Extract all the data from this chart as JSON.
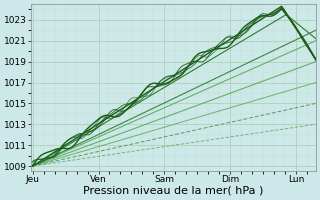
{
  "background_color": "#cce8e8",
  "plot_bg_color": "#cce8e8",
  "grid_color_major": "#aaccaa",
  "grid_color_minor": "#bbddbb",
  "ylim": [
    1008.5,
    1024.5
  ],
  "yticks": [
    1009,
    1011,
    1013,
    1015,
    1017,
    1019,
    1021,
    1023
  ],
  "xlabel": "Pression niveau de la mer( hPa )",
  "xlabel_fontsize": 8,
  "tick_fontsize": 6.5,
  "day_labels": [
    "Jeu",
    "Ven",
    "Sam",
    "Dim",
    "Lun"
  ],
  "day_positions": [
    0,
    1,
    2,
    3,
    4
  ],
  "xlim": [
    -0.02,
    4.3
  ],
  "dark_green": "#1a5c1a",
  "med_green": "#2d7a2d",
  "light_green": "#5aaa5a",
  "dashed_green": "#4a8a4a"
}
